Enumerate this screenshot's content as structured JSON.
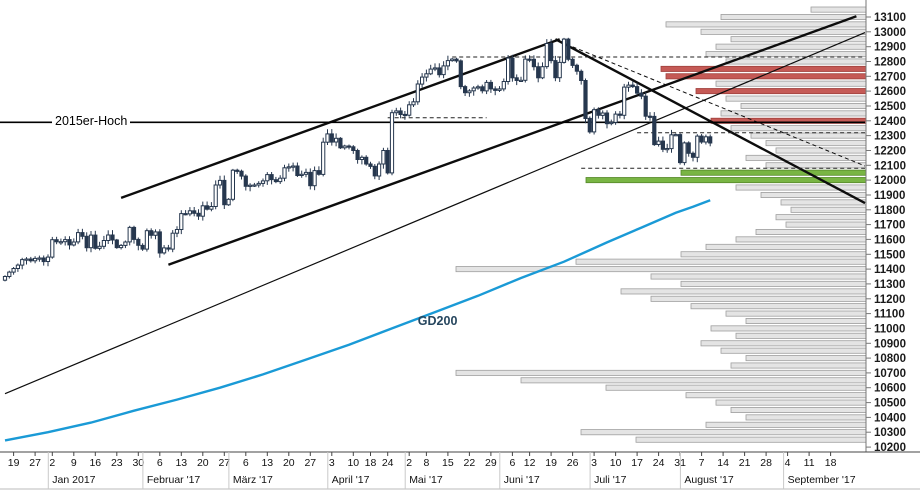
{
  "colors": {
    "candle": "#26374e",
    "gd200": "#1a9ad6",
    "line": "#0d0d0d",
    "vol_gray": "#e4e4e4",
    "vol_gray_border": "#9f9f9f",
    "vol_red": "#c55a56",
    "vol_red_border": "#9e403d",
    "vol_green": "#79b544",
    "vol_green_border": "#55882a"
  },
  "chart_data": {
    "type": "candlestick",
    "title": "",
    "description": "DAX daily candlestick chart Dec 2016 - Aug 2017 with GD200 moving average, trend channel, downtrend lines, 2015 high level and right-hand volume-by-price profile",
    "ylim": [
      10200,
      13100
    ],
    "grid": false,
    "y_axis": {
      "side": "right",
      "ticks": [
        13100,
        13000,
        12900,
        12800,
        12700,
        12600,
        12500,
        12400,
        12300,
        12200,
        12100,
        12000,
        11900,
        11800,
        11700,
        11600,
        11500,
        11400,
        11300,
        11200,
        11100,
        11000,
        10900,
        10800,
        10700,
        10600,
        10500,
        10400,
        10300,
        10200
      ]
    },
    "x_axis": {
      "tick_labels": [
        "19",
        "27",
        "2",
        "9",
        "16",
        "23",
        "30",
        "6",
        "13",
        "20",
        "27",
        "6",
        "13",
        "20",
        "27",
        "3",
        "10",
        "18",
        "24",
        "2",
        "8",
        "15",
        "22",
        "29",
        "6",
        "12",
        "19",
        "26",
        "3",
        "10",
        "17",
        "24",
        "31",
        "7",
        "14",
        "21",
        "28",
        "4",
        "11",
        "18"
      ],
      "tick_days": [
        2,
        7,
        11,
        16,
        21,
        26,
        31,
        36,
        41,
        46,
        51,
        56,
        61,
        66,
        71,
        76,
        81,
        85,
        89,
        94,
        98,
        103,
        108,
        113,
        118,
        122,
        127,
        132,
        137,
        142,
        147,
        152,
        157,
        162,
        167,
        172,
        177,
        182,
        187,
        192
      ],
      "month_labels": [
        "Jan 2017",
        "Februar '17",
        "März '17",
        "April '17",
        "Mai '17",
        "Juni '17",
        "Juli '17",
        "August '17",
        "September '17"
      ],
      "month_days": [
        11,
        33,
        53,
        76,
        94,
        116,
        137,
        158,
        182
      ]
    },
    "candles": {
      "open_rule": "previous_close",
      "closes": [
        11350,
        11380,
        11404,
        11427,
        11464,
        11468,
        11456,
        11472,
        11475,
        11451,
        11481,
        11598,
        11584,
        11585,
        11599,
        11563,
        11583,
        11646,
        11621,
        11544,
        11629,
        11540,
        11554,
        11593,
        11630,
        11596,
        11545,
        11560,
        11583,
        11681,
        11600,
        11560,
        11535,
        11659,
        11628,
        11651,
        11509,
        11543,
        11535,
        11642,
        11667,
        11774,
        11772,
        11793,
        11776,
        11757,
        11827,
        11804,
        11822,
        11967,
        11998,
        11834,
        11871,
        12067,
        12060,
        12027,
        11958,
        11966,
        11967,
        11978,
        11995,
        12037,
        12003,
        11990,
        12013,
        12083,
        12090,
        12095,
        12031,
        12039,
        12052,
        11962,
        12064,
        12039,
        12256,
        12312,
        12257,
        12282,
        12218,
        12230,
        12225,
        12200,
        12139,
        12154,
        12109,
        12093,
        12028,
        12109,
        12200,
        12049,
        12455,
        12467,
        12443,
        12438,
        12508,
        12528,
        12648,
        12695,
        12717,
        12749,
        12757,
        12711,
        12770,
        12806,
        12816,
        12804,
        12631,
        12590,
        12602,
        12621,
        12629,
        12602,
        12659,
        12615,
        12605,
        12615,
        12665,
        12823,
        12690,
        12672,
        12673,
        12816,
        12815,
        12765,
        12690,
        12765,
        12921,
        12806,
        12691,
        12794,
        12951,
        12815,
        12774,
        12734,
        12672,
        12416,
        12325,
        12475,
        12437,
        12453,
        12381,
        12389,
        12445,
        12437,
        12627,
        12641,
        12631,
        12587,
        12566,
        12431,
        12430,
        12240,
        12263,
        12208,
        12213,
        12306,
        12307,
        12118,
        12251,
        12181,
        12154,
        12297,
        12257,
        12292,
        12250
      ]
    },
    "gd200": {
      "label": "GD200",
      "points": [
        [
          0,
          10245
        ],
        [
          10,
          10300
        ],
        [
          20,
          10365
        ],
        [
          30,
          10445
        ],
        [
          40,
          10520
        ],
        [
          50,
          10600
        ],
        [
          60,
          10690
        ],
        [
          70,
          10790
        ],
        [
          80,
          10890
        ],
        [
          90,
          11000
        ],
        [
          100,
          11110
        ],
        [
          110,
          11220
        ],
        [
          120,
          11340
        ],
        [
          130,
          11450
        ],
        [
          140,
          11580
        ],
        [
          148,
          11680
        ],
        [
          156,
          11780
        ],
        [
          160,
          11820
        ],
        [
          164,
          11865
        ]
      ]
    },
    "hoch_level": {
      "label": "2015er-Hoch",
      "price": 12390
    },
    "annotations": [
      {
        "text": "2015er-Hoch",
        "price": 12390
      },
      {
        "text": "GD200",
        "i": 96,
        "price": 11045
      }
    ],
    "dashed_levels": [
      {
        "name": "resistance-june-highs",
        "p": 12830,
        "from": 104
      },
      {
        "name": "april-consolidation",
        "p": 12420,
        "from": 89,
        "to": 112
      },
      {
        "name": "august-consolidation",
        "p": 12320,
        "from": 147
      },
      {
        "name": "support-july-low",
        "p": 12080,
        "from": 134
      }
    ],
    "trendlines": [
      {
        "name": "long-term-uptrend",
        "i1": 0,
        "p1": 10560,
        "i2": 200,
        "p2": 12995,
        "w": 1.2
      },
      {
        "name": "channel-upper",
        "i1": 27,
        "p1": 11880,
        "i2": 129,
        "p2": 12950,
        "w": 2.4
      },
      {
        "name": "channel-lower",
        "i1": 38,
        "p1": 11430,
        "i2": 198,
        "p2": 13105,
        "w": 2.4
      },
      {
        "name": "downtrend-main",
        "i1": 128,
        "p1": 12950,
        "i2": 200,
        "p2": 11845,
        "w": 2.4
      },
      {
        "name": "downtrend-minor",
        "i1": 129,
        "p1": 12935,
        "i2": 200,
        "p2": 12095,
        "w": 1,
        "dash": true
      }
    ],
    "volume_profile": {
      "bars": [
        [
          13150,
          55,
          0
        ],
        [
          13100,
          145,
          0
        ],
        [
          13050,
          200,
          0
        ],
        [
          13000,
          165,
          0
        ],
        [
          12950,
          135,
          0
        ],
        [
          12900,
          150,
          0
        ],
        [
          12850,
          160,
          0
        ],
        [
          12800,
          140,
          0
        ],
        [
          12750,
          205,
          1
        ],
        [
          12700,
          200,
          1
        ],
        [
          12650,
          150,
          0
        ],
        [
          12600,
          170,
          1
        ],
        [
          12550,
          140,
          0
        ],
        [
          12500,
          125,
          0
        ],
        [
          12450,
          145,
          0
        ],
        [
          12400,
          155,
          1
        ],
        [
          12350,
          135,
          0
        ],
        [
          12300,
          115,
          0
        ],
        [
          12250,
          100,
          0
        ],
        [
          12200,
          90,
          0
        ],
        [
          12150,
          120,
          0
        ],
        [
          12100,
          100,
          0
        ],
        [
          12050,
          185,
          2
        ],
        [
          12000,
          280,
          2
        ],
        [
          11950,
          130,
          0
        ],
        [
          11900,
          105,
          0
        ],
        [
          11850,
          85,
          0
        ],
        [
          11800,
          75,
          0
        ],
        [
          11750,
          90,
          0
        ],
        [
          11700,
          80,
          0
        ],
        [
          11650,
          110,
          0
        ],
        [
          11600,
          130,
          0
        ],
        [
          11550,
          160,
          0
        ],
        [
          11500,
          185,
          0
        ],
        [
          11450,
          290,
          0
        ],
        [
          11400,
          410,
          0
        ],
        [
          11350,
          215,
          0
        ],
        [
          11300,
          185,
          0
        ],
        [
          11250,
          245,
          0
        ],
        [
          11200,
          215,
          0
        ],
        [
          11150,
          175,
          0
        ],
        [
          11100,
          140,
          0
        ],
        [
          11050,
          120,
          0
        ],
        [
          11000,
          155,
          0
        ],
        [
          10950,
          130,
          0
        ],
        [
          10900,
          165,
          0
        ],
        [
          10850,
          145,
          0
        ],
        [
          10800,
          120,
          0
        ],
        [
          10750,
          135,
          0
        ],
        [
          10700,
          410,
          0
        ],
        [
          10650,
          345,
          0
        ],
        [
          10600,
          260,
          0
        ],
        [
          10550,
          180,
          0
        ],
        [
          10500,
          150,
          0
        ],
        [
          10450,
          135,
          0
        ],
        [
          10400,
          120,
          0
        ],
        [
          10350,
          160,
          0
        ],
        [
          10300,
          285,
          0
        ],
        [
          10250,
          230,
          0
        ]
      ]
    }
  }
}
